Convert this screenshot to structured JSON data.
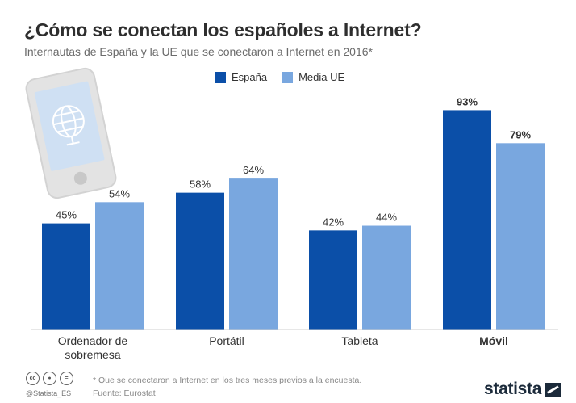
{
  "header": {
    "title": "¿Cómo se conectan los españoles a Internet?",
    "subtitle": "Internautas de España y la UE que se conectaron a Internet en 2016*"
  },
  "legend": {
    "items": [
      {
        "label": "España",
        "color": "#0b4fa8"
      },
      {
        "label": "Media UE",
        "color": "#79a7df"
      }
    ]
  },
  "chart_data": {
    "type": "bar",
    "title": "¿Cómo se conectan los españoles a Internet?",
    "subtitle": "Internautas de España y la UE que se conectaron a Internet en 2016*",
    "categories": [
      "Ordenador de sobremesa",
      "Portátil",
      "Tableta",
      "Móvil"
    ],
    "series": [
      {
        "name": "España",
        "values": [
          45,
          58,
          42,
          93
        ],
        "color": "#0b4fa8"
      },
      {
        "name": "Media UE",
        "values": [
          54,
          64,
          44,
          79
        ],
        "color": "#79a7df"
      }
    ],
    "data_labels": [
      [
        "45%",
        "58%",
        "42%",
        "93%"
      ],
      [
        "54%",
        "64%",
        "44%",
        "79%"
      ]
    ],
    "ylim": [
      0,
      100
    ],
    "legend_position": "top-center",
    "grid": false
  },
  "footer": {
    "note": "* Que se conectaron a Internet en los tres meses previos a la encuesta.",
    "source": "Fuente: Eurostat",
    "handle": "@Statista_ES",
    "brand": "statista",
    "license_icons": [
      "cc-icon",
      "by-icon",
      "nd-icon"
    ]
  }
}
